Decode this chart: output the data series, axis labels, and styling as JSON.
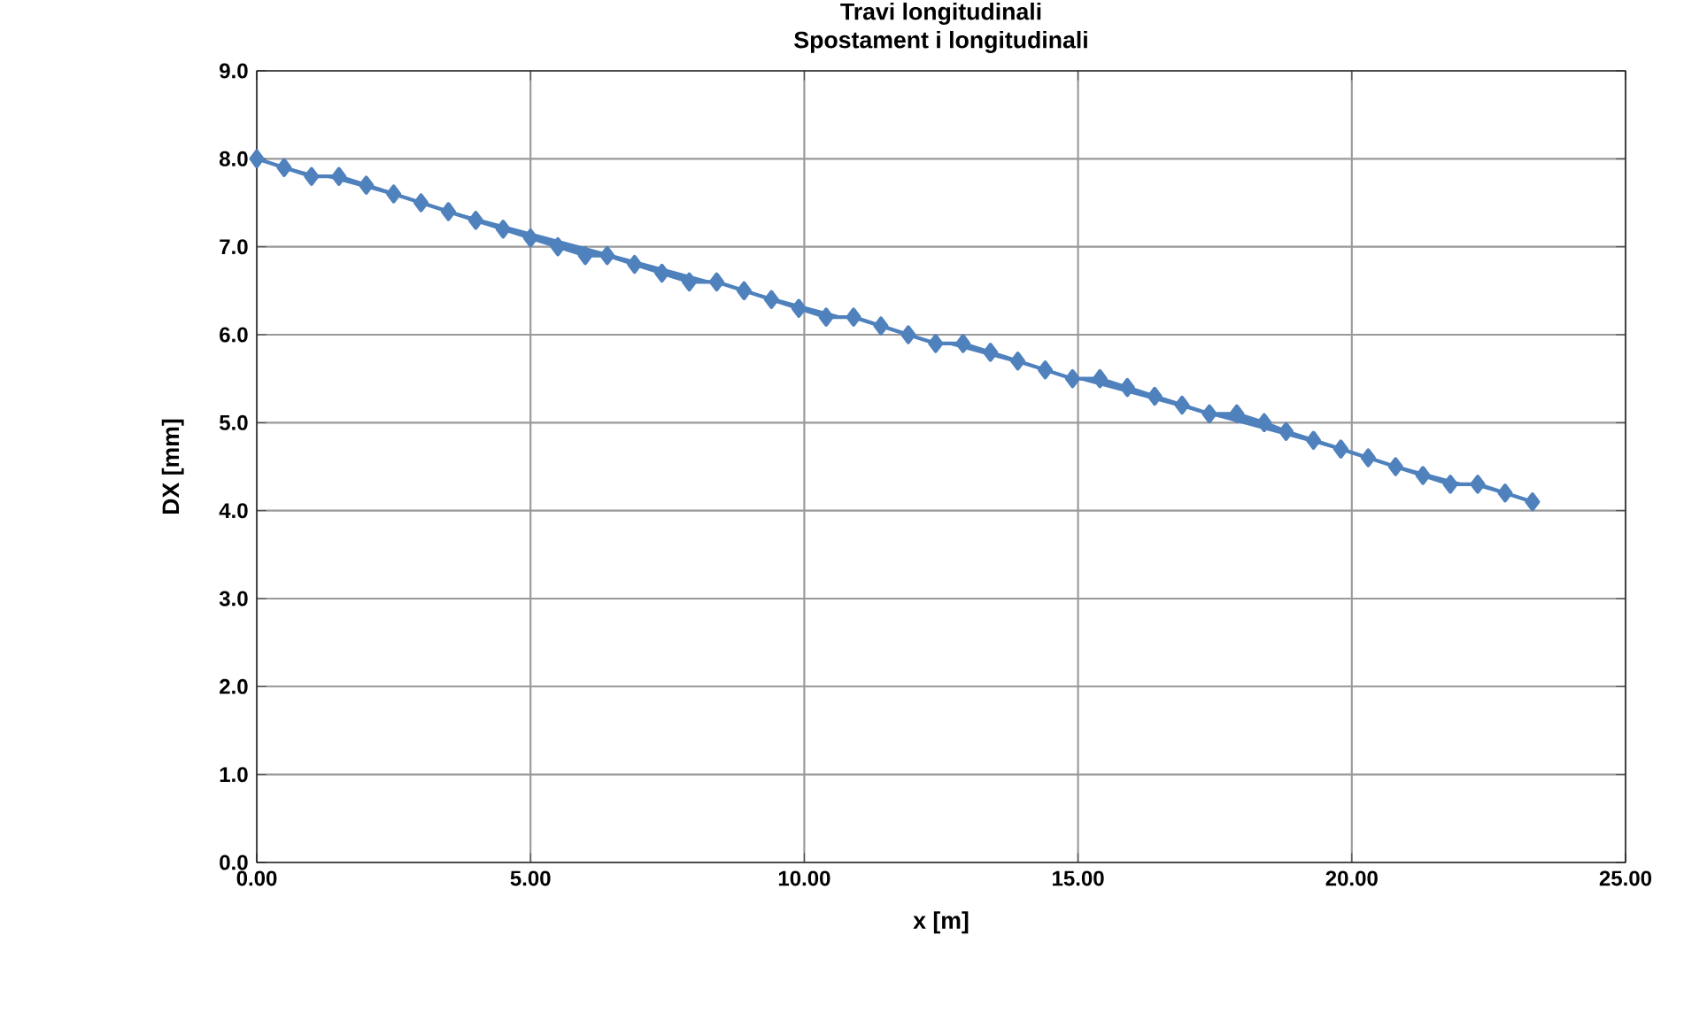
{
  "chart_data": {
    "type": "line",
    "title": "Travi longitudinali",
    "subtitle": "Spostament i longitudinali",
    "xlabel": "x [m]",
    "ylabel": "DX  [mm]",
    "x": [
      0,
      0.5,
      1.0,
      1.5,
      2.0,
      2.5,
      3.0,
      3.5,
      4.0,
      4.5,
      5.0,
      5.5,
      6.0,
      6.4,
      6.9,
      7.4,
      7.9,
      8.4,
      8.9,
      9.4,
      9.9,
      10.4,
      10.9,
      11.4,
      11.9,
      12.4,
      12.9,
      13.4,
      13.9,
      14.4,
      14.9,
      15.4,
      15.9,
      16.4,
      16.9,
      17.4,
      17.9,
      18.4,
      18.8,
      19.3,
      19.8,
      20.3,
      20.8,
      21.3,
      21.8,
      22.3,
      22.8,
      23.3
    ],
    "series": [
      {
        "color": "#4f81bd",
        "values": [
          8.0,
          7.9,
          7.8,
          7.8,
          7.7,
          7.6,
          7.5,
          7.4,
          7.3,
          7.2,
          7.1,
          7.0,
          6.9,
          6.9,
          6.8,
          6.7,
          6.6,
          6.6,
          6.5,
          6.4,
          6.3,
          6.2,
          6.2,
          6.1,
          6.0,
          5.9,
          5.9,
          5.8,
          5.7,
          5.6,
          5.5,
          5.5,
          5.4,
          5.3,
          5.2,
          5.1,
          5.1,
          5.0,
          4.9,
          4.8,
          4.7,
          4.6,
          4.5,
          4.4,
          4.3,
          4.3,
          4.2,
          4.1
        ]
      }
    ],
    "xlim": [
      0,
      25
    ],
    "ylim": [
      0,
      9
    ],
    "xticks": [
      {
        "value": 0,
        "label": "0.00"
      },
      {
        "value": 5,
        "label": "5.00"
      },
      {
        "value": 10,
        "label": "10.00"
      },
      {
        "value": 15,
        "label": "15.00"
      },
      {
        "value": 20,
        "label": "20.00"
      },
      {
        "value": 25,
        "label": "25.00"
      }
    ],
    "yticks": [
      {
        "value": 0,
        "label": "0.0"
      },
      {
        "value": 1,
        "label": "1.0"
      },
      {
        "value": 2,
        "label": "2.0"
      },
      {
        "value": 3,
        "label": "3.0"
      },
      {
        "value": 4,
        "label": "4.0"
      },
      {
        "value": 5,
        "label": "5.0"
      },
      {
        "value": 6,
        "label": "6.0"
      },
      {
        "value": 7,
        "label": "7.0"
      },
      {
        "value": 8,
        "label": "8.0"
      },
      {
        "value": 9,
        "label": "9.0"
      }
    ],
    "grid": true,
    "marker": "diamond",
    "line_style": "solid",
    "legend": false
  }
}
